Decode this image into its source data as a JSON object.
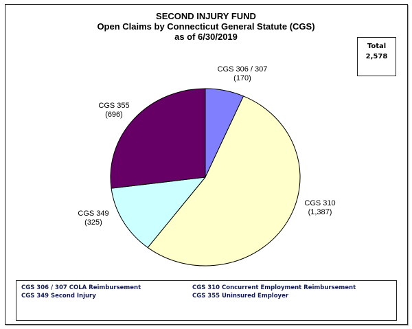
{
  "chart_data": {
    "type": "pie",
    "title": "SECOND INJURY FUND",
    "subtitle": "Open Claims by Connecticut General Statute (CGS)",
    "date_line": "as of 6/30/2019",
    "total_label": "Total",
    "total_value": "2,578",
    "slices": [
      {
        "label": "CGS 306 / 307",
        "value": 170,
        "value_text": "(170)",
        "color": "#8080ff"
      },
      {
        "label": "CGS 310",
        "value": 1387,
        "value_text": "(1,387)",
        "color": "#ffffcc"
      },
      {
        "label": "CGS 349",
        "value": 325,
        "value_text": "(325)",
        "color": "#ccffff"
      },
      {
        "label": "CGS 355",
        "value": 696,
        "value_text": "(696)",
        "color": "#660066"
      }
    ],
    "legend": [
      "CGS 306 / 307 COLA Reimbursement",
      "CGS 310 Concurrent  Employment Reimbursement",
      "CGS 349 Second Injury",
      "CGS 355 Uninsured  Employer"
    ]
  }
}
